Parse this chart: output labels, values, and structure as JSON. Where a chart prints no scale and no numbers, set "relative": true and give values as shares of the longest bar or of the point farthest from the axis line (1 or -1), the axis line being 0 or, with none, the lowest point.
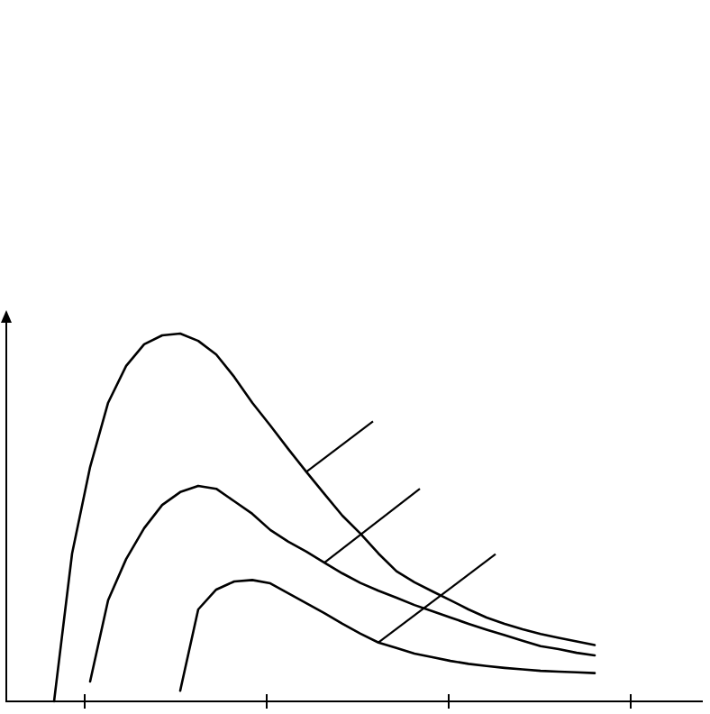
{
  "chart_data": {
    "type": "line",
    "relative": true,
    "categories": [
      null,
      null,
      null,
      null,
      null,
      null,
      null,
      null,
      null,
      null,
      null,
      null,
      null,
      null,
      null,
      null,
      null,
      null,
      null,
      null,
      null,
      null,
      null,
      null,
      null,
      null,
      null,
      null,
      null,
      null,
      null
    ],
    "series": [
      {
        "color": "#000000",
        "values": [
          0,
          0.402,
          0.637,
          0.812,
          0.912,
          0.971,
          0.995,
          1,
          0.98,
          0.943,
          0.882,
          0.812,
          0.75,
          0.686,
          0.624,
          0.564,
          0.505,
          0.456,
          0.402,
          0.354,
          0.324,
          0.299,
          0.275,
          0.25,
          0.228,
          0.211,
          0.196,
          0.183,
          0.173,
          0.163,
          0.153
        ]
      },
      {
        "color": "#000000",
        "values": [
          null,
          null,
          0.054,
          0.275,
          0.387,
          0.471,
          0.534,
          0.569,
          0.586,
          0.578,
          0.544,
          0.51,
          0.466,
          0.434,
          0.407,
          0.377,
          0.348,
          0.322,
          0.301,
          0.282,
          0.262,
          0.245,
          0.228,
          0.211,
          0.195,
          0.18,
          0.165,
          0.15,
          0.142,
          0.132,
          0.125
        ]
      },
      {
        "color": "#000000",
        "values": [
          null,
          null,
          null,
          null,
          null,
          null,
          null,
          0.029,
          0.25,
          0.304,
          0.326,
          0.33,
          0.321,
          0.294,
          0.267,
          0.24,
          0.211,
          0.184,
          0.16,
          0.145,
          0.13,
          0.12,
          0.11,
          0.102,
          0.096,
          0.091,
          0.087,
          0.083,
          0.081,
          0.079,
          0.077
        ]
      }
    ]
  }
}
